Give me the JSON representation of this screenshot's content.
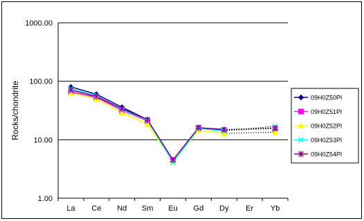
{
  "chart_data": {
    "type": "line",
    "ylabel": "Rocks/chondrite",
    "xlabel": "",
    "title": "",
    "yscale": "log",
    "ylim": [
      1,
      1000
    ],
    "yticks": [
      "1.00",
      "10.00",
      "100.00",
      "1000.00"
    ],
    "ytick_values": [
      1,
      10,
      100,
      1000
    ],
    "categories": [
      "La",
      "Ce",
      "Nd",
      "Sm",
      "Eu",
      "Gd",
      "Dy",
      "Er",
      "Yb"
    ],
    "grid": "horizontal major gridlines",
    "legend_position": "right",
    "gap_segment_style": "dotted line from Dy to Yb (Er missing)",
    "series": [
      {
        "name": "09H0Z50Pl",
        "color": "#000080",
        "marker": "diamond",
        "values": [
          80,
          60,
          36,
          22,
          4.4,
          16,
          15,
          null,
          16
        ]
      },
      {
        "name": "09H0Z51Pl",
        "color": "#ff00ff",
        "marker": "square",
        "values": [
          66,
          53,
          32,
          21,
          4.5,
          16,
          14.5,
          null,
          15.5
        ]
      },
      {
        "name": "09H0Z52Pl",
        "color": "#ffff00",
        "marker": "triangle",
        "values": [
          63,
          50,
          29,
          18.5,
          4.3,
          14.5,
          12.8,
          null,
          13.5
        ]
      },
      {
        "name": "09H0Z53Pl",
        "color": "#00ffff",
        "marker": "x",
        "values": [
          74,
          57,
          33,
          21.5,
          4.1,
          15.5,
          14.2,
          null,
          17
        ]
      },
      {
        "name": "09H0Z54Pl",
        "color": "#800080",
        "marker": "star",
        "values": [
          71,
          55,
          34,
          22,
          4.5,
          16,
          14.8,
          null,
          15.8
        ]
      }
    ]
  }
}
